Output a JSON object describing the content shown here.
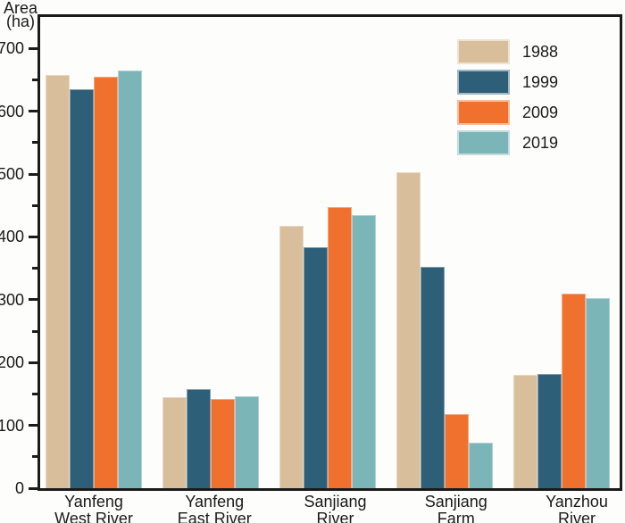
{
  "figure": {
    "y_axis_title_lines": [
      "Area",
      "(ha)"
    ]
  },
  "chart_data": {
    "type": "bar",
    "title": "",
    "ylabel": "Area (ha)",
    "xlabel": "",
    "categories": [
      "Yanfeng West River",
      "Yanfeng East River",
      "Sanjiang River",
      "Sanjiang Farm",
      "Yanzhou River"
    ],
    "series": [
      {
        "name": "1988",
        "color": "#D9BE9B",
        "values": [
          658,
          145,
          417,
          503,
          180
        ]
      },
      {
        "name": "1999",
        "color": "#2D5F78",
        "values": [
          635,
          158,
          383,
          352,
          182
        ]
      },
      {
        "name": "2009",
        "color": "#F0702D",
        "values": [
          655,
          142,
          447,
          118,
          310
        ]
      },
      {
        "name": "2019",
        "color": "#7CB5B8",
        "values": [
          665,
          146,
          434,
          72,
          302
        ]
      }
    ],
    "ylim": [
      0,
      750
    ],
    "y_major_ticks": [
      0,
      100,
      200,
      300,
      400,
      500,
      600,
      700
    ],
    "y_minor_step": 50,
    "grid": false,
    "legend_position": "top-right",
    "frame_color": "#1B1B1B",
    "text_color": "#1A1A1A"
  }
}
